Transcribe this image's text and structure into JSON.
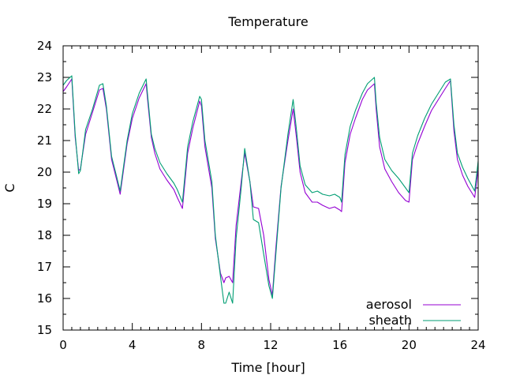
{
  "chart_data": {
    "type": "line",
    "title": "Temperature",
    "xlabel": "Time [hour]",
    "ylabel": "C",
    "xlim": [
      0,
      24
    ],
    "ylim": [
      15,
      24
    ],
    "xticks": [
      0,
      4,
      8,
      12,
      16,
      20,
      24
    ],
    "yticks": [
      15,
      16,
      17,
      18,
      19,
      20,
      21,
      22,
      23,
      24
    ],
    "xminor_step": 0.5,
    "yminor_step": 0.5,
    "grid": false,
    "legend_position": "bottom-right",
    "series": [
      {
        "name": "aerosol",
        "color": "#9400d3",
        "x": [
          0.0,
          0.2,
          0.5,
          0.7,
          0.9,
          1.0,
          1.3,
          1.7,
          2.1,
          2.3,
          2.5,
          2.8,
          3.1,
          3.3,
          3.7,
          4.0,
          4.4,
          4.8,
          4.9,
          5.1,
          5.3,
          5.6,
          6.0,
          6.4,
          6.6,
          6.9,
          7.2,
          7.5,
          7.9,
          8.0,
          8.2,
          8.6,
          8.8,
          9.1,
          9.3,
          9.4,
          9.6,
          9.8,
          10.0,
          10.3,
          10.5,
          10.8,
          11.0,
          11.3,
          11.6,
          11.9,
          12.1,
          12.3,
          12.6,
          13.0,
          13.3,
          13.5,
          13.7,
          14.0,
          14.4,
          14.7,
          15.0,
          15.4,
          15.7,
          16.0,
          16.1,
          16.3,
          16.6,
          16.9,
          17.3,
          17.6,
          18.0,
          18.1,
          18.3,
          18.6,
          19.0,
          19.4,
          19.8,
          20.0,
          20.2,
          20.5,
          20.9,
          21.3,
          21.7,
          22.1,
          22.4,
          22.6,
          22.8,
          23.1,
          23.4,
          23.8,
          24.0
        ],
        "values": [
          22.55,
          22.7,
          22.95,
          21.1,
          20.05,
          20.1,
          21.2,
          21.9,
          22.6,
          22.65,
          22.0,
          20.4,
          19.75,
          19.3,
          20.9,
          21.7,
          22.35,
          22.8,
          22.2,
          21.1,
          20.6,
          20.1,
          19.75,
          19.45,
          19.2,
          18.85,
          20.6,
          21.4,
          22.25,
          22.1,
          20.8,
          19.5,
          17.9,
          16.8,
          16.5,
          16.65,
          16.7,
          16.5,
          18.3,
          19.7,
          20.6,
          19.7,
          18.9,
          18.85,
          18.0,
          16.6,
          16.1,
          17.6,
          19.55,
          21.0,
          22.0,
          21.05,
          20.0,
          19.35,
          19.05,
          19.05,
          18.95,
          18.85,
          18.9,
          18.8,
          18.75,
          20.3,
          21.2,
          21.7,
          22.3,
          22.6,
          22.8,
          22.0,
          20.8,
          20.1,
          19.7,
          19.35,
          19.1,
          19.05,
          20.4,
          20.9,
          21.45,
          21.95,
          22.3,
          22.65,
          22.9,
          21.3,
          20.4,
          19.9,
          19.55,
          19.2,
          20.1
        ]
      },
      {
        "name": "sheath",
        "color": "#009e73",
        "x": [
          0.0,
          0.2,
          0.5,
          0.7,
          0.9,
          1.0,
          1.3,
          1.7,
          2.1,
          2.3,
          2.5,
          2.8,
          3.1,
          3.3,
          3.7,
          4.0,
          4.4,
          4.8,
          4.9,
          5.1,
          5.3,
          5.6,
          6.0,
          6.4,
          6.6,
          6.9,
          7.2,
          7.5,
          7.9,
          8.0,
          8.2,
          8.6,
          8.8,
          9.1,
          9.3,
          9.4,
          9.6,
          9.8,
          10.0,
          10.3,
          10.5,
          10.8,
          11.0,
          11.3,
          11.6,
          11.9,
          12.1,
          12.3,
          12.6,
          13.0,
          13.3,
          13.5,
          13.7,
          14.0,
          14.4,
          14.7,
          15.0,
          15.4,
          15.7,
          16.0,
          16.1,
          16.3,
          16.6,
          16.9,
          17.3,
          17.6,
          18.0,
          18.1,
          18.3,
          18.6,
          19.0,
          19.4,
          19.8,
          20.0,
          20.2,
          20.5,
          20.9,
          21.3,
          21.7,
          22.1,
          22.4,
          22.6,
          22.8,
          23.1,
          23.4,
          23.8,
          24.0
        ],
        "values": [
          22.75,
          22.9,
          23.05,
          21.2,
          19.95,
          20.05,
          21.35,
          22.0,
          22.75,
          22.8,
          22.1,
          20.5,
          19.85,
          19.4,
          21.0,
          21.85,
          22.5,
          22.95,
          22.35,
          21.2,
          20.75,
          20.3,
          19.95,
          19.65,
          19.45,
          19.05,
          20.8,
          21.6,
          22.4,
          22.3,
          21.0,
          19.7,
          18.0,
          16.7,
          15.85,
          15.85,
          16.2,
          15.85,
          17.9,
          19.5,
          20.75,
          19.7,
          18.5,
          18.4,
          17.4,
          16.4,
          16.0,
          17.4,
          19.5,
          21.2,
          22.3,
          21.3,
          20.2,
          19.6,
          19.35,
          19.4,
          19.3,
          19.25,
          19.3,
          19.2,
          19.05,
          20.55,
          21.45,
          21.95,
          22.5,
          22.8,
          23.0,
          22.2,
          21.1,
          20.4,
          20.05,
          19.8,
          19.5,
          19.35,
          20.6,
          21.15,
          21.7,
          22.15,
          22.5,
          22.85,
          22.95,
          21.5,
          20.6,
          20.15,
          19.8,
          19.4,
          20.35
        ]
      }
    ]
  }
}
